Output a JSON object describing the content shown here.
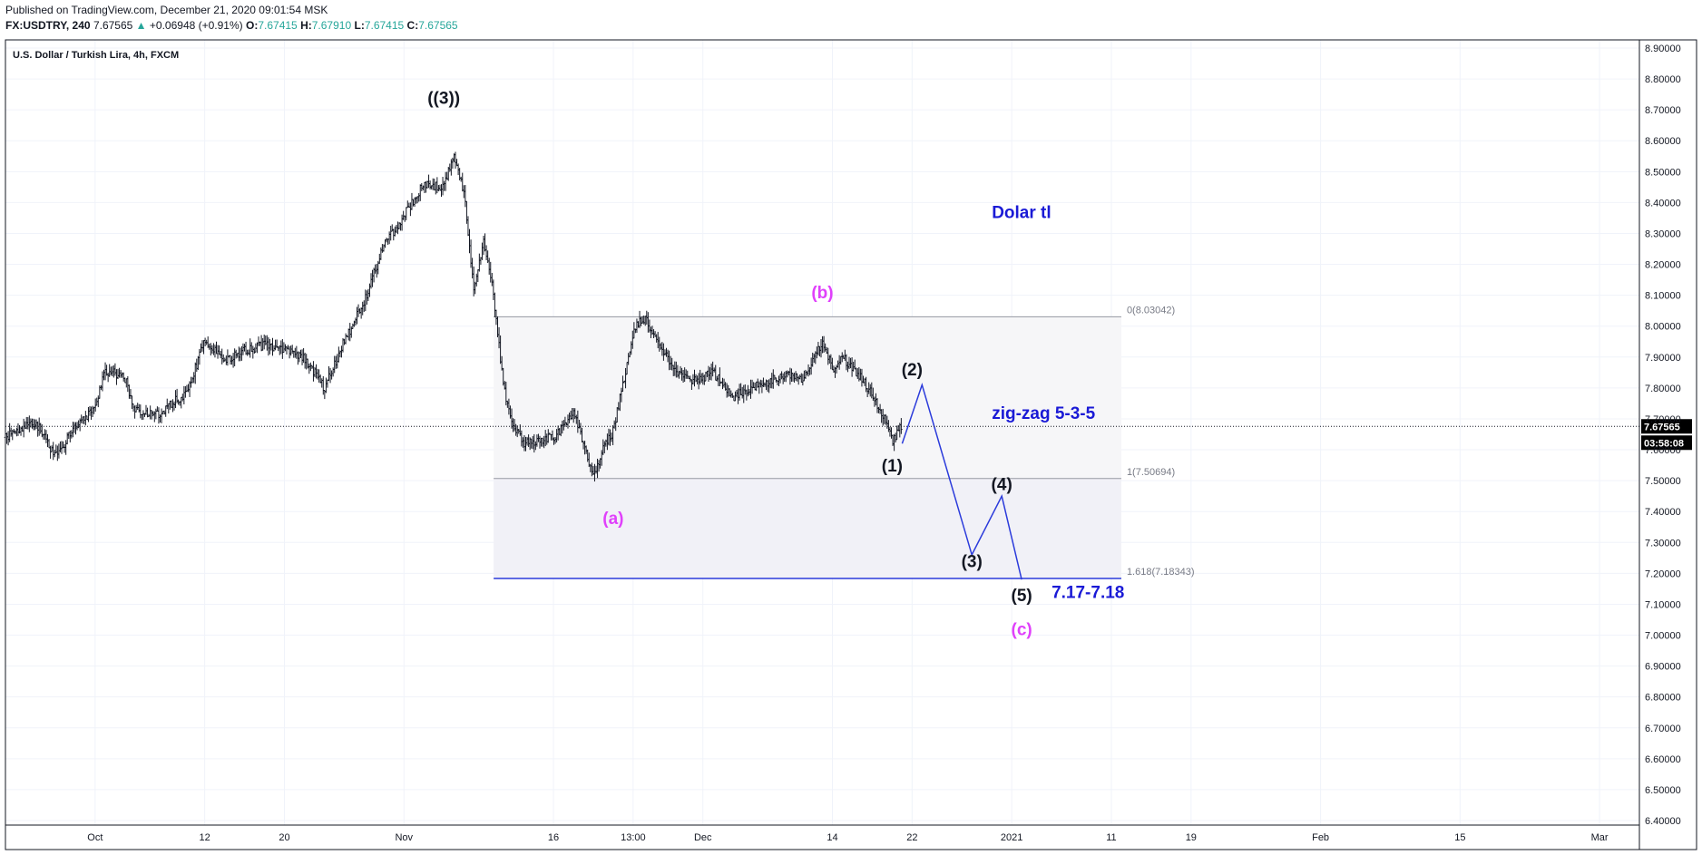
{
  "header": {
    "published": "Published on TradingView.com, December 21, 2020 09:01:54 MSK",
    "symbol": "FX:USDTRY, 240",
    "last": "7.67565",
    "change": "+0.06948 (+0.91%)",
    "o_label": "O:",
    "o": "7.67415",
    "h_label": "H:",
    "h": "7.67910",
    "l_label": "L:",
    "l": "7.67415",
    "c_label": "C:",
    "c": "7.67565"
  },
  "chart_data": {
    "type": "candlestick",
    "title": "U.S. Dollar / Turkish Lira, 4h, FXCM",
    "ylim": [
      6.4,
      8.9
    ],
    "y_ticks": [
      "6.40000",
      "6.50000",
      "6.60000",
      "6.70000",
      "6.80000",
      "6.90000",
      "7.00000",
      "7.10000",
      "7.20000",
      "7.30000",
      "7.40000",
      "7.50000",
      "7.60000",
      "7.70000",
      "7.80000",
      "7.90000",
      "8.00000",
      "8.10000",
      "8.20000",
      "8.30000",
      "8.40000",
      "8.50000",
      "8.60000",
      "8.70000",
      "8.80000",
      "8.90000"
    ],
    "x_range": [
      "2020-09-22",
      "2021-03-05"
    ],
    "x_ticks": [
      {
        "label": "Oct",
        "date": "2020-10-01"
      },
      {
        "label": "12",
        "date": "2020-10-12"
      },
      {
        "label": "20",
        "date": "2020-10-20"
      },
      {
        "label": "Nov",
        "date": "2020-11-01"
      },
      {
        "label": "16",
        "date": "2020-11-16"
      },
      {
        "label": "13:00",
        "date": "2020-11-24"
      },
      {
        "label": "Dec",
        "date": "2020-12-01"
      },
      {
        "label": "14",
        "date": "2020-12-14"
      },
      {
        "label": "22",
        "date": "2020-12-22"
      },
      {
        "label": "2021",
        "date": "2021-01-01"
      },
      {
        "label": "11",
        "date": "2021-01-11"
      },
      {
        "label": "19",
        "date": "2021-01-19"
      },
      {
        "label": "Feb",
        "date": "2021-02-01"
      },
      {
        "label": "15",
        "date": "2021-02-15"
      },
      {
        "label": "Mar",
        "date": "2021-03-01"
      }
    ],
    "price_path": [
      [
        "2020-09-22",
        7.64
      ],
      [
        "2020-09-25",
        7.69
      ],
      [
        "2020-09-27",
        7.58
      ],
      [
        "2020-09-29",
        7.67
      ],
      [
        "2020-10-01",
        7.74
      ],
      [
        "2020-10-02",
        7.86
      ],
      [
        "2020-10-04",
        7.83
      ],
      [
        "2020-10-05",
        7.73
      ],
      [
        "2020-10-07",
        7.71
      ],
      [
        "2020-10-10",
        7.78
      ],
      [
        "2020-10-11",
        7.86
      ],
      [
        "2020-10-12",
        7.95
      ],
      [
        "2020-10-14",
        7.89
      ],
      [
        "2020-10-16",
        7.92
      ],
      [
        "2020-10-18",
        7.94
      ],
      [
        "2020-10-20",
        7.92
      ],
      [
        "2020-10-22",
        7.9
      ],
      [
        "2020-10-24",
        7.8
      ],
      [
        "2020-10-26",
        7.95
      ],
      [
        "2020-10-28",
        8.08
      ],
      [
        "2020-10-30",
        8.26
      ],
      [
        "2020-11-01",
        8.36
      ],
      [
        "2020-11-03",
        8.46
      ],
      [
        "2020-11-05",
        8.45
      ],
      [
        "2020-11-06",
        8.55
      ],
      [
        "2020-11-07",
        8.44
      ],
      [
        "2020-11-08",
        8.12
      ],
      [
        "2020-11-09",
        8.27
      ],
      [
        "2020-11-10",
        8.1
      ],
      [
        "2020-11-11",
        7.8
      ],
      [
        "2020-11-12",
        7.68
      ],
      [
        "2020-11-13",
        7.62
      ],
      [
        "2020-11-16",
        7.64
      ],
      [
        "2020-11-18",
        7.72
      ],
      [
        "2020-11-19",
        7.62
      ],
      [
        "2020-11-20",
        7.52
      ],
      [
        "2020-11-21",
        7.6
      ],
      [
        "2020-11-22",
        7.66
      ],
      [
        "2020-11-23",
        7.82
      ],
      [
        "2020-11-24",
        7.98
      ],
      [
        "2020-11-25",
        8.03
      ],
      [
        "2020-11-26",
        7.98
      ],
      [
        "2020-11-28",
        7.86
      ],
      [
        "2020-11-30",
        7.82
      ],
      [
        "2020-12-02",
        7.85
      ],
      [
        "2020-12-04",
        7.77
      ],
      [
        "2020-12-06",
        7.8
      ],
      [
        "2020-12-09",
        7.84
      ],
      [
        "2020-12-11",
        7.83
      ],
      [
        "2020-12-13",
        7.95
      ],
      [
        "2020-12-14",
        7.86
      ],
      [
        "2020-12-15",
        7.9
      ],
      [
        "2020-12-17",
        7.83
      ],
      [
        "2020-12-19",
        7.72
      ],
      [
        "2020-12-20",
        7.63
      ],
      [
        "2020-12-21",
        7.68
      ]
    ],
    "fibonacci": [
      {
        "ratio": "0",
        "price": 8.03042,
        "label": "0(8.03042)"
      },
      {
        "ratio": "1",
        "price": 7.50694,
        "label": "1(7.50694)"
      },
      {
        "ratio": "1.618",
        "price": 7.18343,
        "label": "1.618(7.18343)"
      }
    ],
    "fib_range": [
      "2020-11-10",
      "2021-01-12"
    ],
    "projection": [
      {
        "label": "(1)",
        "date": "2020-12-21",
        "price": 7.62
      },
      {
        "label": "(2)",
        "date": "2020-12-23",
        "price": 7.81
      },
      {
        "label": "(3)",
        "date": "2020-12-28",
        "price": 7.26
      },
      {
        "label": "(4)",
        "date": "2020-12-31",
        "price": 7.45
      },
      {
        "label": "(5)",
        "date": "2021-01-02",
        "price": 7.18
      }
    ],
    "wave_labels": [
      {
        "text": "((3))",
        "date": "2020-11-05",
        "price": 8.72,
        "color": "#131722"
      },
      {
        "text": "(a)",
        "date": "2020-11-22",
        "price": 7.36,
        "color": "#e040fb"
      },
      {
        "text": "(b)",
        "date": "2020-12-13",
        "price": 8.09,
        "color": "#e040fb"
      },
      {
        "text": "(1)",
        "date": "2020-12-20",
        "price": 7.53,
        "color": "#131722"
      },
      {
        "text": "(2)",
        "date": "2020-12-22",
        "price": 7.84,
        "color": "#131722"
      },
      {
        "text": "(3)",
        "date": "2020-12-28",
        "price": 7.22,
        "color": "#131722"
      },
      {
        "text": "(4)",
        "date": "2020-12-31",
        "price": 7.47,
        "color": "#131722"
      },
      {
        "text": "(5)",
        "date": "2021-01-02",
        "price": 7.11,
        "color": "#131722"
      },
      {
        "text": "(c)",
        "date": "2021-01-02",
        "price": 7.0,
        "color": "#e040fb"
      }
    ],
    "annotations": [
      {
        "text": "Dolar tl",
        "date": "2020-12-30",
        "price": 8.35,
        "color": "#1a1ad6"
      },
      {
        "text": "zig-zag  5-3-5",
        "date": "2020-12-30",
        "price": 7.7,
        "color": "#1a1ad6"
      },
      {
        "text": "7.17-7.18",
        "date": "2021-01-05",
        "price": 7.12,
        "color": "#1a1ad6"
      }
    ],
    "last_price": {
      "value": 7.67565,
      "label": "7.67565",
      "countdown": "03:58:08"
    },
    "colors": {
      "candle": "#131722",
      "projection": "#2b3bdb",
      "fib_line": "#9598a1",
      "fib_fill": "#f4f4f8",
      "fib_ext_line": "#2b3bdb",
      "wave_magenta": "#e040fb",
      "note_blue": "#1a1ad6"
    }
  }
}
